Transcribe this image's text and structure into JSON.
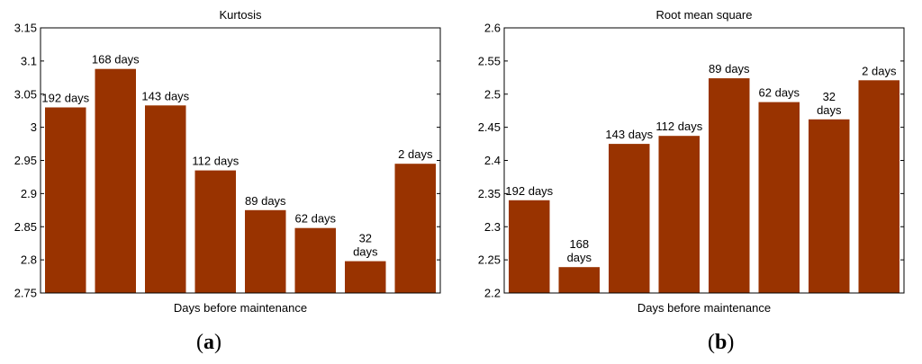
{
  "figure": {
    "panel_labels": [
      {
        "open": "(",
        "letter": "a",
        "close": ")"
      },
      {
        "open": "(",
        "letter": "b",
        "close": ")"
      }
    ],
    "bar_color": "#993300"
  },
  "chart_data": [
    {
      "type": "bar",
      "title": "Kurtosis",
      "xlabel": "Days before maintenance",
      "ylabel": "",
      "categories": [
        "192 days",
        "168 days",
        "143 days",
        "112 days",
        "89 days",
        "62 days",
        "32 days",
        "2 days"
      ],
      "bar_labels": [
        [
          "192 days"
        ],
        [
          "168 days"
        ],
        [
          "143 days"
        ],
        [
          "112 days"
        ],
        [
          "89 days"
        ],
        [
          "62 days"
        ],
        [
          "32",
          "days"
        ],
        [
          "2 days"
        ]
      ],
      "values": [
        3.03,
        3.088,
        3.033,
        2.935,
        2.875,
        2.848,
        2.798,
        2.945
      ],
      "ylim": [
        2.75,
        3.15
      ],
      "yticks": [
        2.75,
        2.8,
        2.85,
        2.9,
        2.95,
        3.0,
        3.05,
        3.1,
        3.15
      ],
      "ytick_labels": [
        "2.75",
        "2.8",
        "2.85",
        "2.9",
        "2.95",
        "3",
        "3.05",
        "3.1",
        "3.15"
      ],
      "grid": false,
      "legend": "none"
    },
    {
      "type": "bar",
      "title": "Root mean square",
      "xlabel": "Days before maintenance",
      "ylabel": "",
      "categories": [
        "192 days",
        "168 days",
        "143 days",
        "112 days",
        "89 days",
        "62 days",
        "32 days",
        "2 days"
      ],
      "bar_labels": [
        [
          "192 days"
        ],
        [
          "168",
          "days"
        ],
        [
          "143 days"
        ],
        [
          "112 days"
        ],
        [
          "89 days"
        ],
        [
          "62 days"
        ],
        [
          "32",
          "days"
        ],
        [
          "2 days"
        ]
      ],
      "values": [
        2.34,
        2.239,
        2.425,
        2.437,
        2.524,
        2.488,
        2.462,
        2.521
      ],
      "ylim": [
        2.2,
        2.6
      ],
      "yticks": [
        2.2,
        2.25,
        2.3,
        2.35,
        2.4,
        2.45,
        2.5,
        2.55,
        2.6
      ],
      "ytick_labels": [
        "2.2",
        "2.25",
        "2.3",
        "2.35",
        "2.4",
        "2.45",
        "2.5",
        "2.55",
        "2.6"
      ],
      "grid": false,
      "legend": "none"
    }
  ]
}
